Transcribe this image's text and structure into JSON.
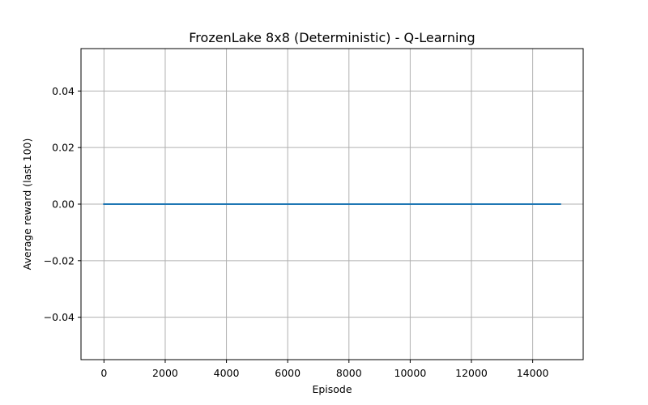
{
  "chart_data": {
    "type": "line",
    "title": "FrozenLake 8x8 (Deterministic) - Q-Learning",
    "xlabel": "Episode",
    "ylabel": "Average reward (last 100)",
    "xlim": [
      -750,
      15650
    ],
    "ylim": [
      -0.055,
      0.055
    ],
    "xticks": [
      0,
      2000,
      4000,
      6000,
      8000,
      10000,
      12000,
      14000
    ],
    "xtick_labels": [
      "0",
      "2000",
      "4000",
      "6000",
      "8000",
      "10000",
      "12000",
      "14000"
    ],
    "yticks": [
      -0.04,
      -0.02,
      0.0,
      0.02,
      0.04
    ],
    "ytick_labels": [
      "−0.04",
      "−0.02",
      "0.00",
      "0.02",
      "0.04"
    ],
    "grid": true,
    "series": [
      {
        "color": "#1f77b4",
        "x": [
          0,
          14900
        ],
        "y": [
          0.0,
          0.0
        ]
      }
    ]
  }
}
